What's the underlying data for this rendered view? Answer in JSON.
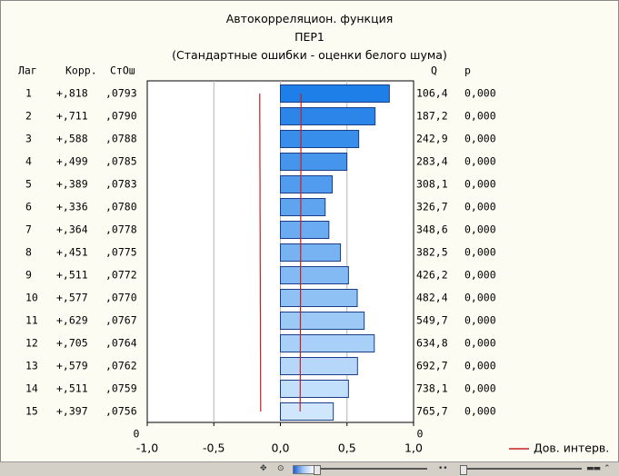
{
  "chart_data": {
    "type": "bar",
    "title": "Автокорреляцион. функция",
    "subtitle": "ПЕР1",
    "note": "(Стандартные ошибки - оценки белого шума)",
    "headers": {
      "lag": "Лаг",
      "corr": "Корр.",
      "se": "СтОш",
      "q": "Q",
      "p": "p"
    },
    "rows": [
      {
        "lag": "1",
        "corr": "+,818",
        "se": ",0793",
        "q": "106,4",
        "p": "0,000",
        "value": 0.818
      },
      {
        "lag": "2",
        "corr": "+,711",
        "se": ",0790",
        "q": "187,2",
        "p": "0,000",
        "value": 0.711
      },
      {
        "lag": "3",
        "corr": "+,588",
        "se": ",0788",
        "q": "242,9",
        "p": "0,000",
        "value": 0.588
      },
      {
        "lag": "4",
        "corr": "+,499",
        "se": ",0785",
        "q": "283,4",
        "p": "0,000",
        "value": 0.499
      },
      {
        "lag": "5",
        "corr": "+,389",
        "se": ",0783",
        "q": "308,1",
        "p": "0,000",
        "value": 0.389
      },
      {
        "lag": "6",
        "corr": "+,336",
        "se": ",0780",
        "q": "326,7",
        "p": "0,000",
        "value": 0.336
      },
      {
        "lag": "7",
        "corr": "+,364",
        "se": ",0778",
        "q": "348,6",
        "p": "0,000",
        "value": 0.364
      },
      {
        "lag": "8",
        "corr": "+,451",
        "se": ",0775",
        "q": "382,5",
        "p": "0,000",
        "value": 0.451
      },
      {
        "lag": "9",
        "corr": "+,511",
        "se": ",0772",
        "q": "426,2",
        "p": "0,000",
        "value": 0.511
      },
      {
        "lag": "10",
        "corr": "+,577",
        "se": ",0770",
        "q": "482,4",
        "p": "0,000",
        "value": 0.577
      },
      {
        "lag": "11",
        "corr": "+,629",
        "se": ",0767",
        "q": "549,7",
        "p": "0,000",
        "value": 0.629
      },
      {
        "lag": "12",
        "corr": "+,705",
        "se": ",0764",
        "q": "634,8",
        "p": "0,000",
        "value": 0.705
      },
      {
        "lag": "13",
        "corr": "+,579",
        "se": ",0762",
        "q": "692,7",
        "p": "0,000",
        "value": 0.579
      },
      {
        "lag": "14",
        "corr": "+,511",
        "se": ",0759",
        "q": "738,1",
        "p": "0,000",
        "value": 0.511
      },
      {
        "lag": "15",
        "corr": "+,397",
        "se": ",0756",
        "q": "765,7",
        "p": "0,000",
        "value": 0.397
      }
    ],
    "confidence_limits": {
      "upper": [
        0.155,
        0.155,
        0.154,
        0.154,
        0.153,
        0.153,
        0.152,
        0.152,
        0.151,
        0.151,
        0.15,
        0.15,
        0.149,
        0.149,
        0.148
      ],
      "lower": [
        -0.155,
        -0.155,
        -0.154,
        -0.154,
        -0.153,
        -0.153,
        -0.152,
        -0.152,
        -0.151,
        -0.151,
        -0.15,
        -0.15,
        -0.149,
        -0.149,
        -0.148
      ]
    },
    "xlim": [
      -1.0,
      1.0
    ],
    "xticks": [
      "-1,0",
      "-0,5",
      "0,0",
      "0,5",
      "1,0"
    ],
    "xtick_values": [
      -1.0,
      -0.5,
      0.0,
      0.5,
      1.0
    ],
    "zero_labels": [
      "0",
      "0"
    ],
    "legend": {
      "label": "Дов. интерв.",
      "color": "#c8201e",
      "position": "bottom-right"
    },
    "colors": {
      "bar_dark": "#1f7fe8",
      "bar_light": "#cfe6fc",
      "bar_border": "#1a3e8a",
      "grid": "#b4b4b4"
    },
    "grid": true
  }
}
